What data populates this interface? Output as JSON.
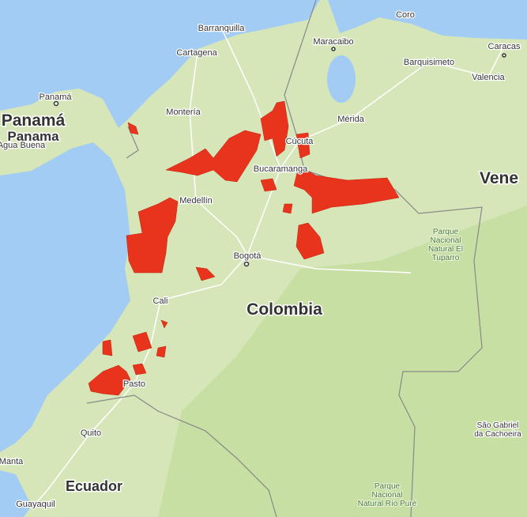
{
  "map": {
    "cities": [
      "Coro",
      "Barranquilla",
      "Maracaibo",
      "Caracas",
      "Cartagena",
      "Barquisimeto",
      "Valencia",
      "Panamá",
      "Agua Buena",
      "Montería",
      "Mérida",
      "Cúcuta",
      "Bucaramanga",
      "Medellín",
      "Bogotá",
      "Cali",
      "Pasto",
      "Quito",
      "Manta",
      "Guayaquil"
    ],
    "countries": [
      "Panamá",
      "Panama",
      "Colombia",
      "Ecuador",
      "Vene"
    ],
    "areas": [
      [
        "Parque",
        "Nacional",
        "Natural El",
        "Tuparro"
      ],
      [
        "São Gabriel",
        "da Cachoeira"
      ],
      [
        "Parque",
        "Nacional",
        "Natural Río Puré"
      ]
    ]
  }
}
